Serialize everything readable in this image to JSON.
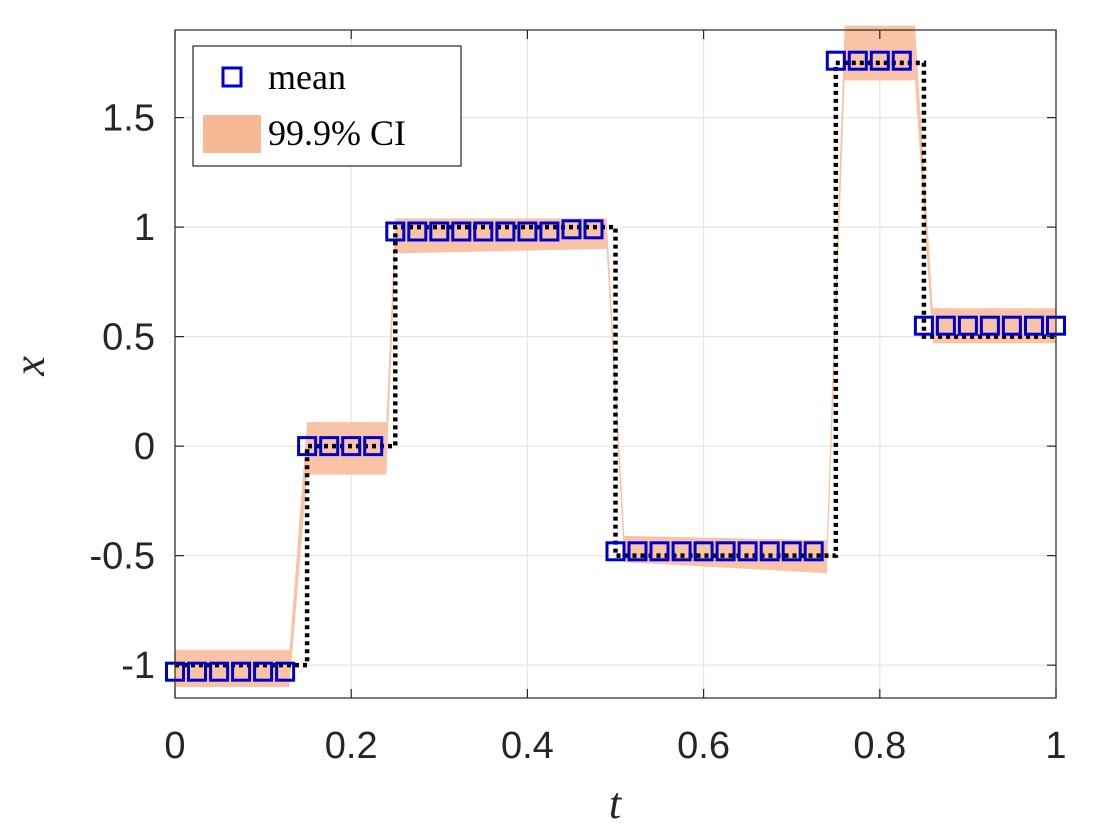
{
  "chart_data": {
    "type": "line",
    "title": "",
    "xlabel": "t",
    "ylabel": "x",
    "xlim": [
      0,
      1
    ],
    "ylim": [
      -1.15,
      1.9
    ],
    "grid": true,
    "legend_position": "top-left",
    "x_ticks": [
      0,
      0.2,
      0.4,
      0.6,
      0.8,
      1
    ],
    "x_tick_labels": [
      "0",
      "0.2",
      "0.4",
      "0.6",
      "0.8",
      "1"
    ],
    "y_ticks": [
      -1,
      -0.5,
      0,
      0.5,
      1,
      1.5
    ],
    "y_tick_labels": [
      "-1",
      "-0.5",
      "0",
      "0.5",
      "1",
      "1.5"
    ],
    "legend": [
      {
        "label": "mean",
        "marker": "square",
        "color": "#0000cc"
      },
      {
        "label": "99.9% CI",
        "marker": "band",
        "color": "#f7b896"
      }
    ],
    "colors": {
      "mean": "#0000cc",
      "ci_band": "#f7b896",
      "true_signal": "#000000",
      "grid": "#e6e6e6",
      "axes": "#262626"
    },
    "true_signal": {
      "style": "dotted",
      "x": [
        0,
        0.15,
        0.15,
        0.25,
        0.25,
        0.5,
        0.5,
        0.75,
        0.75,
        0.85,
        0.85,
        1.0
      ],
      "y": [
        -1,
        -1,
        0,
        0,
        1,
        1,
        -0.5,
        -0.5,
        1.75,
        1.75,
        0.5,
        0.5
      ]
    },
    "series": [
      {
        "name": "mean",
        "x": [
          0,
          0.025,
          0.05,
          0.075,
          0.1,
          0.125,
          0.15,
          0.175,
          0.2,
          0.225,
          0.25,
          0.275,
          0.3,
          0.325,
          0.35,
          0.375,
          0.4,
          0.425,
          0.45,
          0.475,
          0.5,
          0.525,
          0.55,
          0.575,
          0.6,
          0.625,
          0.65,
          0.675,
          0.7,
          0.725,
          0.75,
          0.775,
          0.8,
          0.825,
          0.85,
          0.875,
          0.9,
          0.925,
          0.95,
          0.975,
          1.0
        ],
        "y": [
          -1.03,
          -1.03,
          -1.03,
          -1.03,
          -1.03,
          -1.03,
          0.0,
          0.0,
          0.0,
          0.0,
          0.98,
          0.98,
          0.98,
          0.98,
          0.98,
          0.98,
          0.98,
          0.98,
          0.99,
          0.99,
          -0.48,
          -0.48,
          -0.48,
          -0.48,
          -0.48,
          -0.48,
          -0.48,
          -0.48,
          -0.48,
          -0.48,
          1.76,
          1.76,
          1.76,
          1.76,
          0.55,
          0.55,
          0.55,
          0.55,
          0.55,
          0.55,
          0.55
        ]
      }
    ],
    "ci_band": {
      "x": [
        0,
        0.13,
        0.15,
        0.24,
        0.25,
        0.49,
        0.51,
        0.74,
        0.76,
        0.84,
        0.86,
        1.0
      ],
      "upper": [
        -0.93,
        -0.93,
        0.11,
        0.11,
        1.04,
        1.04,
        -0.41,
        -0.43,
        1.92,
        1.92,
        0.63,
        0.63
      ],
      "lower": [
        -1.1,
        -1.1,
        -0.13,
        -0.13,
        0.88,
        0.9,
        -0.53,
        -0.58,
        1.67,
        1.67,
        0.47,
        0.47
      ]
    }
  }
}
